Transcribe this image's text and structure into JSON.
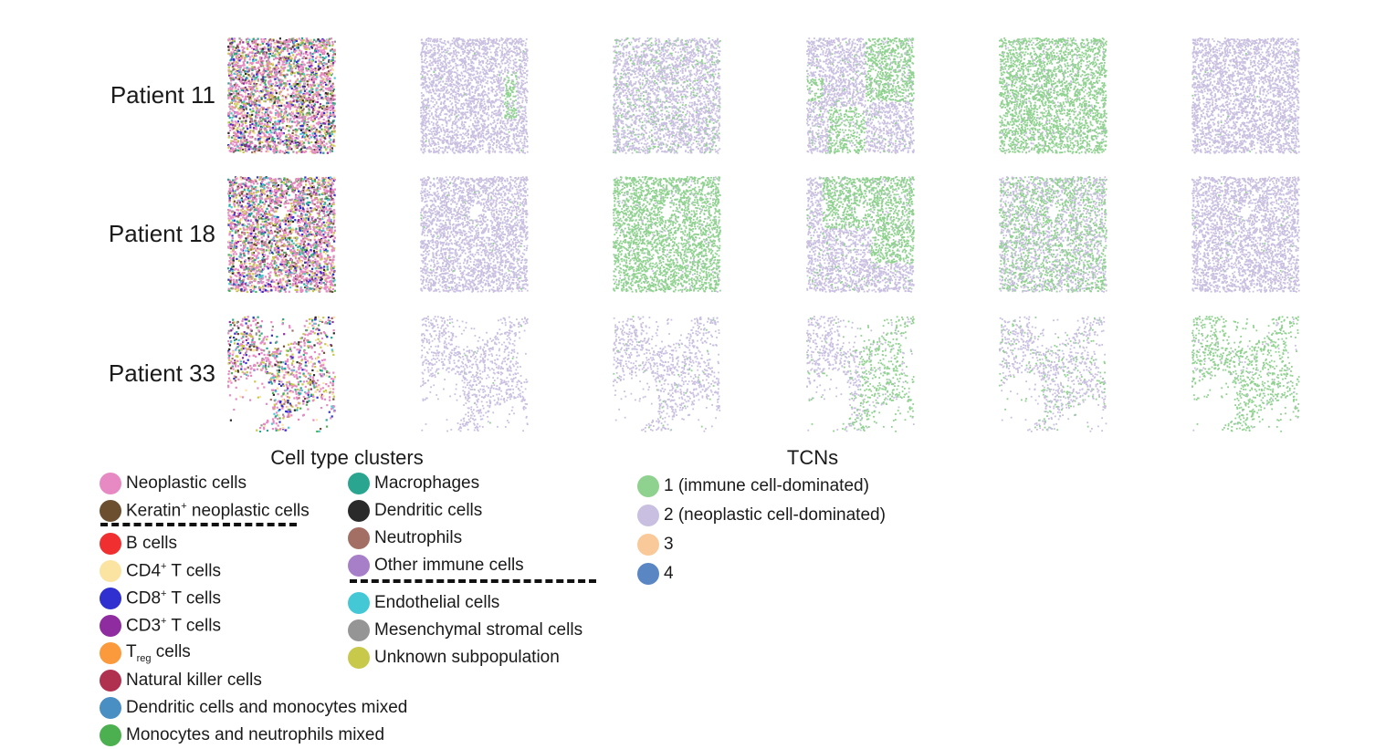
{
  "rows": [
    {
      "label": "Patient 11",
      "mode": "dense"
    },
    {
      "label": "Patient 18",
      "mode": "dense_hole"
    },
    {
      "label": "Patient 33",
      "mode": "sparse"
    }
  ],
  "cell_types": {
    "title": "Cell type clusters",
    "left": [
      {
        "pre": "Neoplastic cells",
        "color": "#e78ac3"
      },
      {
        "pre": "Keratin",
        "sup": "+",
        "post": " neoplastic cells",
        "color": "#6b4f2f"
      },
      {
        "pre": "B cells",
        "color": "#f03030"
      },
      {
        "pre": "CD4",
        "sup": "+",
        "post": " T cells",
        "color": "#fbe3a2"
      },
      {
        "pre": "CD8",
        "sup": "+",
        "post": " T cells",
        "color": "#3030d0"
      },
      {
        "pre": "CD3",
        "sup": "+",
        "post": " T cells",
        "color": "#8e2ca0"
      },
      {
        "pre": "T",
        "sub": "reg",
        "post": " cells",
        "color": "#fb9a3c"
      },
      {
        "pre": "Natural killer cells",
        "color": "#b03050"
      },
      {
        "pre": "Dendritic cells and monocytes mixed",
        "color": "#4a8fc4"
      },
      {
        "pre": "Monocytes and neutrophils mixed",
        "color": "#4caf50"
      }
    ],
    "right": [
      {
        "pre": "Macrophages",
        "color": "#2aa58f"
      },
      {
        "pre": "Dendritic cells",
        "color": "#2a2a2a"
      },
      {
        "pre": "Neutrophils",
        "color": "#a36e64"
      },
      {
        "pre": "Other immune cells",
        "color": "#a77fc9"
      },
      {
        "pre": "Endothelial cells",
        "color": "#45c8d6"
      },
      {
        "pre": "Mesenchymal stromal cells",
        "color": "#959595"
      },
      {
        "pre": "Unknown subpopulation",
        "color": "#c8c84a"
      }
    ]
  },
  "tcns": {
    "title": "TCNs",
    "items": [
      {
        "label": "1 (immune cell-dominated)",
        "color": "#8fd18f"
      },
      {
        "label": "2 (neoplastic cell-dominated)",
        "color": "#c9bfe0"
      },
      {
        "label": "3",
        "color": "#f9c99a"
      },
      {
        "label": "4",
        "color": "#5b86c4"
      }
    ]
  }
}
